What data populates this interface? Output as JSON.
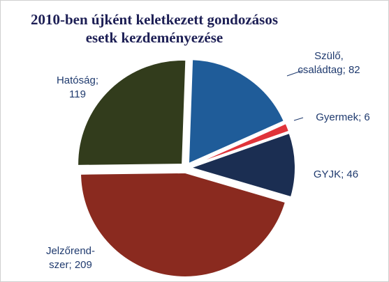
{
  "chart_data": {
    "type": "pie",
    "title": "2010-ben újként keletkezett gondozásos esetk kezdeményezése",
    "categories": [
      "Szülő, családtag",
      "Gyermek",
      "GYJK",
      "Jelzőrend-szer",
      "Hatóság"
    ],
    "values": [
      82,
      6,
      46,
      209,
      119
    ],
    "colors": [
      "#1f5c99",
      "#e0343a",
      "#1b2e52",
      "#8a2a1f",
      "#323c1c"
    ]
  }
}
